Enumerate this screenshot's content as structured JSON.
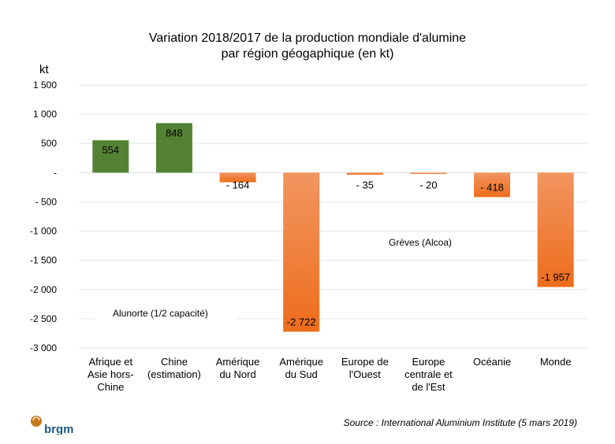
{
  "chart_data": {
    "type": "bar",
    "title": [
      "Variation 2018/2017 de la production mondiale d'alumine",
      "par région géogaphique (en kt)"
    ],
    "ylabel": "kt",
    "ylim": [
      -3000,
      1500
    ],
    "yticks": [
      1500,
      1000,
      500,
      0,
      -500,
      -1000,
      -1500,
      -2000,
      -2500,
      -3000
    ],
    "ytick_labels": [
      "1 500",
      "1 000",
      "500",
      "-",
      "- 500",
      "-1 000",
      "-1 500",
      "-2 000",
      "-2 500",
      "-3 000"
    ],
    "grid": true,
    "categories": [
      [
        "Afrique et",
        "Asie hors-",
        "Chine"
      ],
      [
        "Chine",
        "(estimation)"
      ],
      [
        "Amérique",
        "du Nord"
      ],
      [
        "Amérique",
        "du Sud"
      ],
      [
        "Europe de",
        "l'Ouest"
      ],
      [
        "Europe",
        "centrale et",
        "de l'Est"
      ],
      [
        "Océanie"
      ],
      [
        "Monde"
      ]
    ],
    "values": [
      554,
      848,
      -164,
      -2722,
      -35,
      -20,
      -418,
      -1957
    ],
    "data_labels": [
      "554",
      "848",
      "- 164",
      "-2 722",
      "- 35",
      "- 20",
      "- 418",
      "-1 957"
    ],
    "colors": {
      "positive": "#548235",
      "negative_top": "#f29560",
      "negative_bottom": "#ed6d1c"
    },
    "annotations": [
      "Alunorte  (1/2 capacité)",
      "Grèves (Alcoa)"
    ]
  },
  "source": "Source : International Aluminium Institute (5 mars 2019)",
  "logo": {
    "text": "brgm",
    "color": "#1f5a8a",
    "accent": "#c8781e"
  }
}
